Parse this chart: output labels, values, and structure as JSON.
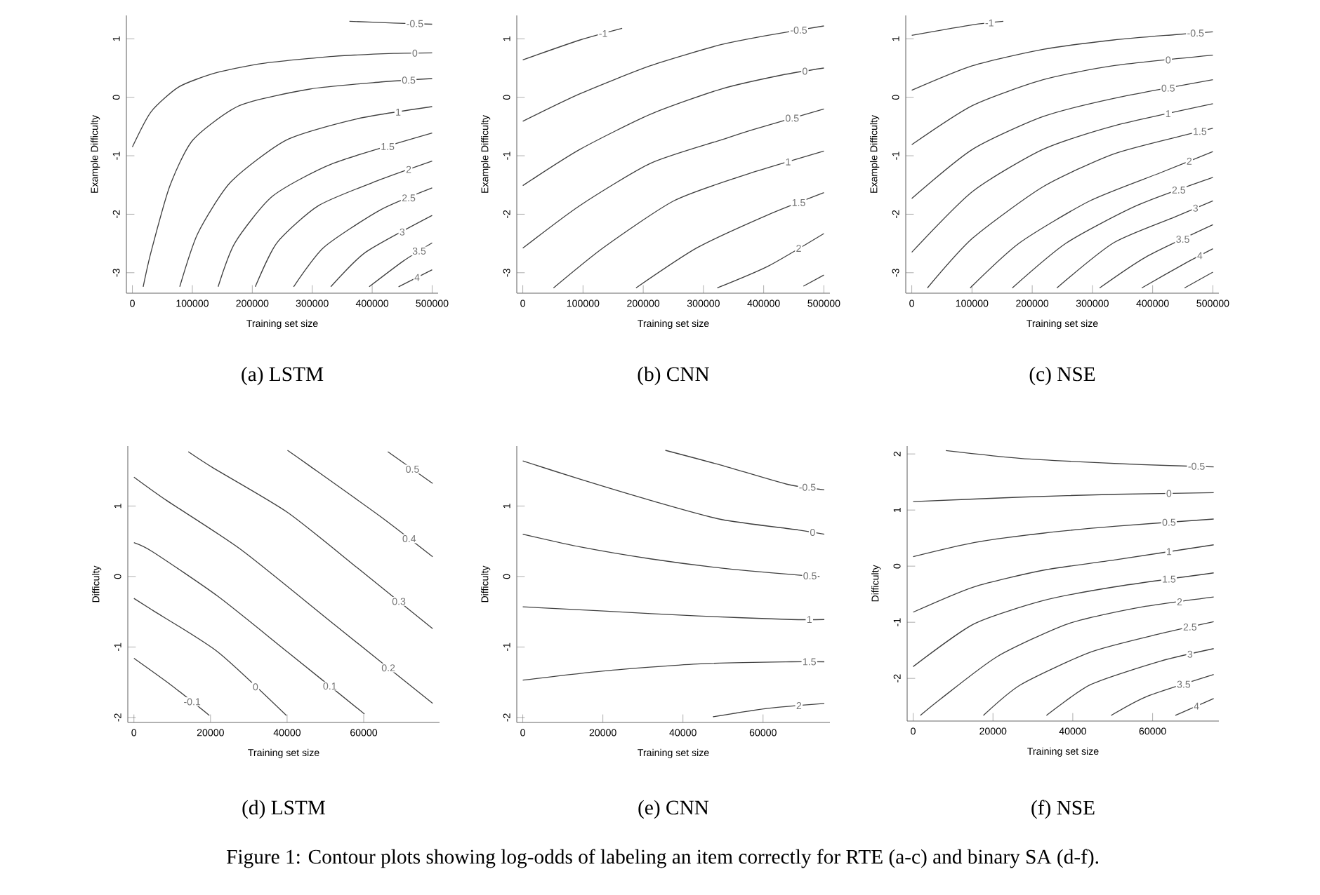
{
  "chart_data": [
    {
      "type": "line",
      "title": "(a) LSTM",
      "xlabel": "Training set size",
      "ylabel": "Example Difficulty",
      "xlim": [
        -10000,
        510000
      ],
      "ylim": [
        -3.35,
        1.4
      ],
      "xticks": [
        0,
        100000,
        200000,
        300000,
        400000,
        500000
      ],
      "yticks": [
        -3,
        -2,
        -1,
        0,
        1
      ],
      "series": [
        {
          "name": "-0.5",
          "color": "#404040",
          "x": [
            362000,
            436000,
            500000
          ],
          "values": [
            1.3,
            1.27,
            1.25
          ]
        },
        {
          "name": "0",
          "color": "#404040",
          "x": [
            0,
            31000,
            78000,
            140000,
            218000,
            335000,
            436000,
            500000
          ],
          "values": [
            -0.85,
            -0.25,
            0.18,
            0.42,
            0.58,
            0.7,
            0.75,
            0.76
          ]
        },
        {
          "name": "0.5",
          "color": "#404040",
          "x": [
            18000,
            31000,
            62000,
            101000,
            179000,
            296000,
            413000,
            500000
          ],
          "values": [
            -3.24,
            -2.65,
            -1.53,
            -0.73,
            -0.14,
            0.14,
            0.26,
            0.32
          ]
        },
        {
          "name": "1",
          "color": "#404040",
          "x": [
            79000,
            109000,
            164000,
            257000,
            374000,
            500000
          ],
          "values": [
            -3.24,
            -2.33,
            -1.45,
            -0.73,
            -0.37,
            -0.16
          ]
        },
        {
          "name": "1.5",
          "color": "#404040",
          "x": [
            143000,
            171000,
            234000,
            335000,
            500000
          ],
          "values": [
            -3.24,
            -2.49,
            -1.69,
            -1.13,
            -0.61
          ]
        },
        {
          "name": "2",
          "color": "#404040",
          "x": [
            205000,
            241000,
            311000,
            413000,
            500000
          ],
          "values": [
            -3.24,
            -2.49,
            -1.85,
            -1.41,
            -1.09
          ]
        },
        {
          "name": "2.5",
          "color": "#404040",
          "x": [
            269000,
            319000,
            413000,
            500000
          ],
          "values": [
            -3.24,
            -2.57,
            -1.93,
            -1.55
          ]
        },
        {
          "name": "3",
          "color": "#404040",
          "x": [
            331000,
            389000,
            500000
          ],
          "values": [
            -3.24,
            -2.65,
            -2.02
          ]
        },
        {
          "name": "3.5",
          "color": "#404040",
          "x": [
            395000,
            452000,
            500000
          ],
          "values": [
            -3.24,
            -2.8,
            -2.49
          ]
        },
        {
          "name": "4",
          "color": "#404040",
          "x": [
            444000,
            500000
          ],
          "values": [
            -3.24,
            -2.95
          ]
        }
      ]
    },
    {
      "type": "line",
      "title": "(b) CNN",
      "xlabel": "Training set size",
      "ylabel": "Example Difficulty",
      "xlim": [
        -10000,
        510000
      ],
      "ylim": [
        -3.35,
        1.4
      ],
      "xticks": [
        0,
        100000,
        200000,
        300000,
        400000,
        500000
      ],
      "yticks": [
        -3,
        -2,
        -1,
        0,
        1
      ],
      "series": [
        {
          "name": "-1",
          "color": "#404040",
          "x": [
            0,
            95000,
            165000
          ],
          "values": [
            0.64,
            0.98,
            1.18
          ]
        },
        {
          "name": "-0.5",
          "color": "#404040",
          "x": [
            0,
            95000,
            212000,
            329000,
            407000,
            500000
          ],
          "values": [
            -0.41,
            0.06,
            0.54,
            0.9,
            1.06,
            1.22
          ]
        },
        {
          "name": "0",
          "color": "#404040",
          "x": [
            0,
            95000,
            212000,
            329000,
            430000,
            500000
          ],
          "values": [
            -1.51,
            -0.89,
            -0.29,
            0.14,
            0.38,
            0.5
          ]
        },
        {
          "name": "0.5",
          "color": "#404040",
          "x": [
            0,
            95000,
            212000,
            329000,
            383000,
            500000
          ],
          "values": [
            -2.58,
            -1.85,
            -1.13,
            -0.73,
            -0.55,
            -0.2
          ]
        },
        {
          "name": "1",
          "color": "#404040",
          "x": [
            51000,
            134000,
            251000,
            368000,
            500000
          ],
          "values": [
            -3.26,
            -2.57,
            -1.77,
            -1.33,
            -0.92
          ]
        },
        {
          "name": "1.5",
          "color": "#404040",
          "x": [
            188000,
            290000,
            407000,
            500000
          ],
          "values": [
            -3.26,
            -2.57,
            -2.01,
            -1.63
          ]
        },
        {
          "name": "2",
          "color": "#404040",
          "x": [
            323000,
            407000,
            500000
          ],
          "values": [
            -3.26,
            -2.89,
            -2.33
          ]
        },
        {
          "color": "#404040",
          "x": [
            466000,
            500000
          ],
          "values": [
            -3.23,
            -3.04
          ]
        }
      ]
    },
    {
      "type": "line",
      "title": "(c) NSE",
      "xlabel": "Training set size",
      "ylabel": "Example Difficulty",
      "xlim": [
        -10000,
        510000
      ],
      "ylim": [
        -3.35,
        1.4
      ],
      "xticks": [
        0,
        100000,
        200000,
        300000,
        400000,
        500000
      ],
      "yticks": [
        -3,
        -2,
        -1,
        0,
        1
      ],
      "series": [
        {
          "name": "-1",
          "color": "#404040",
          "x": [
            0,
            101000,
            152000
          ],
          "values": [
            1.06,
            1.24,
            1.3
          ]
        },
        {
          "name": "-0.5",
          "color": "#404040",
          "x": [
            0,
            101000,
            218000,
            335000,
            436000,
            500000
          ],
          "values": [
            0.12,
            0.54,
            0.82,
            0.98,
            1.07,
            1.12
          ]
        },
        {
          "name": "0",
          "color": "#404040",
          "x": [
            0,
            101000,
            218000,
            335000,
            500000
          ],
          "values": [
            -0.81,
            -0.14,
            0.3,
            0.54,
            0.72
          ]
        },
        {
          "name": "0.5",
          "color": "#404040",
          "x": [
            0,
            101000,
            218000,
            335000,
            500000
          ],
          "values": [
            -1.73,
            -0.89,
            -0.33,
            -0.02,
            0.3
          ]
        },
        {
          "name": "1",
          "color": "#404040",
          "x": [
            0,
            101000,
            218000,
            335000,
            500000
          ],
          "values": [
            -2.65,
            -1.61,
            -0.89,
            -0.49,
            -0.11
          ]
        },
        {
          "name": "1.5",
          "color": "#404040",
          "x": [
            26000,
            101000,
            218000,
            335000,
            452000,
            500000
          ],
          "values": [
            -3.26,
            -2.41,
            -1.53,
            -0.97,
            -0.65,
            -0.53
          ]
        },
        {
          "name": "2",
          "color": "#404040",
          "x": [
            97000,
            179000,
            296000,
            413000,
            500000
          ],
          "values": [
            -3.26,
            -2.49,
            -1.77,
            -1.29,
            -0.93
          ]
        },
        {
          "name": "2.5",
          "color": "#404040",
          "x": [
            167000,
            257000,
            374000,
            500000
          ],
          "values": [
            -3.26,
            -2.49,
            -1.85,
            -1.37
          ]
        },
        {
          "name": "3",
          "color": "#404040",
          "x": [
            241000,
            335000,
            436000,
            500000
          ],
          "values": [
            -3.26,
            -2.49,
            -2.05,
            -1.77
          ]
        },
        {
          "name": "3.5",
          "color": "#404040",
          "x": [
            312000,
            389000,
            500000
          ],
          "values": [
            -3.26,
            -2.73,
            -2.18
          ]
        },
        {
          "name": "4",
          "color": "#404040",
          "x": [
            382000,
            452000,
            500000
          ],
          "values": [
            -3.26,
            -2.85,
            -2.59
          ]
        },
        {
          "color": "#404040",
          "x": [
            453000,
            500000
          ],
          "values": [
            -3.26,
            -2.99
          ]
        }
      ]
    },
    {
      "type": "line",
      "title": "(d) LSTM",
      "xlabel": "Training set size",
      "ylabel": "Difficulty",
      "xlim": [
        -1600,
        79800
      ],
      "ylim": [
        -2.07,
        1.85
      ],
      "xticks": [
        0,
        20000,
        40000,
        60000
      ],
      "yticks": [
        -2,
        -1,
        0,
        1
      ],
      "series": [
        {
          "name": "-0.1",
          "color": "#404040",
          "x": [
            0,
            9700,
            19700
          ],
          "values": [
            -1.16,
            -1.54,
            -1.97
          ]
        },
        {
          "name": "0",
          "color": "#404040",
          "x": [
            0,
            4900,
            21900,
            39800
          ],
          "values": [
            -0.31,
            -0.48,
            -1.07,
            -1.97
          ]
        },
        {
          "name": "0.1",
          "color": "#404040",
          "x": [
            0,
            4900,
            21900,
            40100,
            60200
          ],
          "values": [
            0.48,
            0.35,
            -0.28,
            -1.07,
            -1.95
          ]
        },
        {
          "name": "0.2",
          "color": "#404040",
          "x": [
            0,
            8500,
            28000,
            52300,
            78000
          ],
          "values": [
            1.41,
            1.08,
            0.38,
            -0.68,
            -1.8
          ]
        },
        {
          "name": "0.3",
          "color": "#404040",
          "x": [
            14200,
            20700,
            40100,
            58400,
            78000
          ],
          "values": [
            1.77,
            1.54,
            0.91,
            0.12,
            -0.74
          ]
        },
        {
          "name": "0.4",
          "color": "#404040",
          "x": [
            40100,
            45600,
            64400,
            78000
          ],
          "values": [
            1.79,
            1.58,
            0.85,
            0.28
          ]
        },
        {
          "name": "0.5",
          "color": "#404040",
          "x": [
            66300,
            78000
          ],
          "values": [
            1.77,
            1.32
          ]
        }
      ]
    },
    {
      "type": "line",
      "title": "(e) CNN",
      "xlabel": "Training set size",
      "ylabel": "Difficulty",
      "xlim": [
        -1500,
        76700
      ],
      "ylim": [
        -2.07,
        1.85
      ],
      "xticks": [
        0,
        20000,
        40000,
        60000
      ],
      "yticks": [
        -2,
        -1,
        0,
        1
      ],
      "series": [
        {
          "name": "-0.5",
          "color": "#404040",
          "x": [
            35600,
            49500,
            65900,
            75300
          ],
          "values": [
            1.79,
            1.58,
            1.31,
            1.23
          ]
        },
        {
          "name": "0",
          "color": "#404040",
          "x": [
            0,
            14300,
            31900,
            49500,
            68800,
            75300
          ],
          "values": [
            1.64,
            1.38,
            1.08,
            0.81,
            0.66,
            0.6
          ]
        },
        {
          "name": "0.5",
          "color": "#404040",
          "x": [
            0,
            14300,
            31900,
            49500,
            68800,
            74100
          ],
          "values": [
            0.6,
            0.42,
            0.25,
            0.12,
            0.02,
            0.0
          ]
        },
        {
          "name": "1",
          "color": "#404040",
          "x": [
            0,
            20200,
            43600,
            67000,
            75300
          ],
          "values": [
            -0.43,
            -0.49,
            -0.56,
            -0.61,
            -0.61
          ]
        },
        {
          "name": "1.5",
          "color": "#404040",
          "x": [
            0,
            20200,
            43600,
            67000,
            75300
          ],
          "values": [
            -1.47,
            -1.34,
            -1.24,
            -1.21,
            -1.21
          ]
        },
        {
          "name": "2",
          "color": "#404040",
          "x": [
            47500,
            61200,
            75300
          ],
          "values": [
            -1.99,
            -1.87,
            -1.8
          ]
        }
      ]
    },
    {
      "type": "line",
      "title": "(f) NSE",
      "xlabel": "Training set size",
      "ylabel": "Difficulty",
      "xlim": [
        -1500,
        76600
      ],
      "ylim": [
        -2.76,
        2.14
      ],
      "xticks": [
        0,
        20000,
        40000,
        60000
      ],
      "yticks": [
        -2,
        -1,
        0,
        1,
        2
      ],
      "series": [
        {
          "name": "-0.5",
          "color": "#404040",
          "x": [
            8200,
            27000,
            50400,
            65700,
            75300
          ],
          "values": [
            2.06,
            1.92,
            1.83,
            1.79,
            1.77
          ]
        },
        {
          "name": "0",
          "color": "#404040",
          "x": [
            0,
            27000,
            50400,
            75300
          ],
          "values": [
            1.15,
            1.23,
            1.28,
            1.31
          ]
        },
        {
          "name": "0.5",
          "color": "#404040",
          "x": [
            0,
            15200,
            32800,
            50400,
            75300
          ],
          "values": [
            0.17,
            0.42,
            0.59,
            0.71,
            0.84
          ]
        },
        {
          "name": "1",
          "color": "#404040",
          "x": [
            0,
            15200,
            32800,
            50400,
            75300
          ],
          "values": [
            -0.82,
            -0.37,
            -0.07,
            0.11,
            0.38
          ]
        },
        {
          "name": "1.5",
          "color": "#404040",
          "x": [
            0,
            15200,
            32800,
            50400,
            75300
          ],
          "values": [
            -1.79,
            -1.03,
            -0.61,
            -0.37,
            -0.12
          ]
        },
        {
          "name": "2",
          "color": "#404040",
          "x": [
            1800,
            7000,
            21100,
            38700,
            56300,
            75300
          ],
          "values": [
            -2.66,
            -2.36,
            -1.61,
            -1.03,
            -0.74,
            -0.55
          ]
        },
        {
          "name": "2.5",
          "color": "#404040",
          "x": [
            17600,
            27000,
            44500,
            62100,
            75300
          ],
          "values": [
            -2.66,
            -2.11,
            -1.53,
            -1.2,
            -0.99
          ]
        },
        {
          "name": "3",
          "color": "#404040",
          "x": [
            33400,
            44500,
            62100,
            75300
          ],
          "values": [
            -2.66,
            -2.11,
            -1.69,
            -1.47
          ]
        },
        {
          "name": "3.5",
          "color": "#404040",
          "x": [
            49600,
            58600,
            75300
          ],
          "values": [
            -2.66,
            -2.32,
            -1.93
          ]
        },
        {
          "name": "4",
          "color": "#404040",
          "x": [
            65700,
            75300
          ],
          "values": [
            -2.66,
            -2.36
          ]
        }
      ]
    },
    {
      "type": "other",
      "annotations": [
        "Figure 1: Contour plots showing log-odds of labeling an item correctly for RTE (a-c) and binary SA (d-f)."
      ]
    }
  ]
}
